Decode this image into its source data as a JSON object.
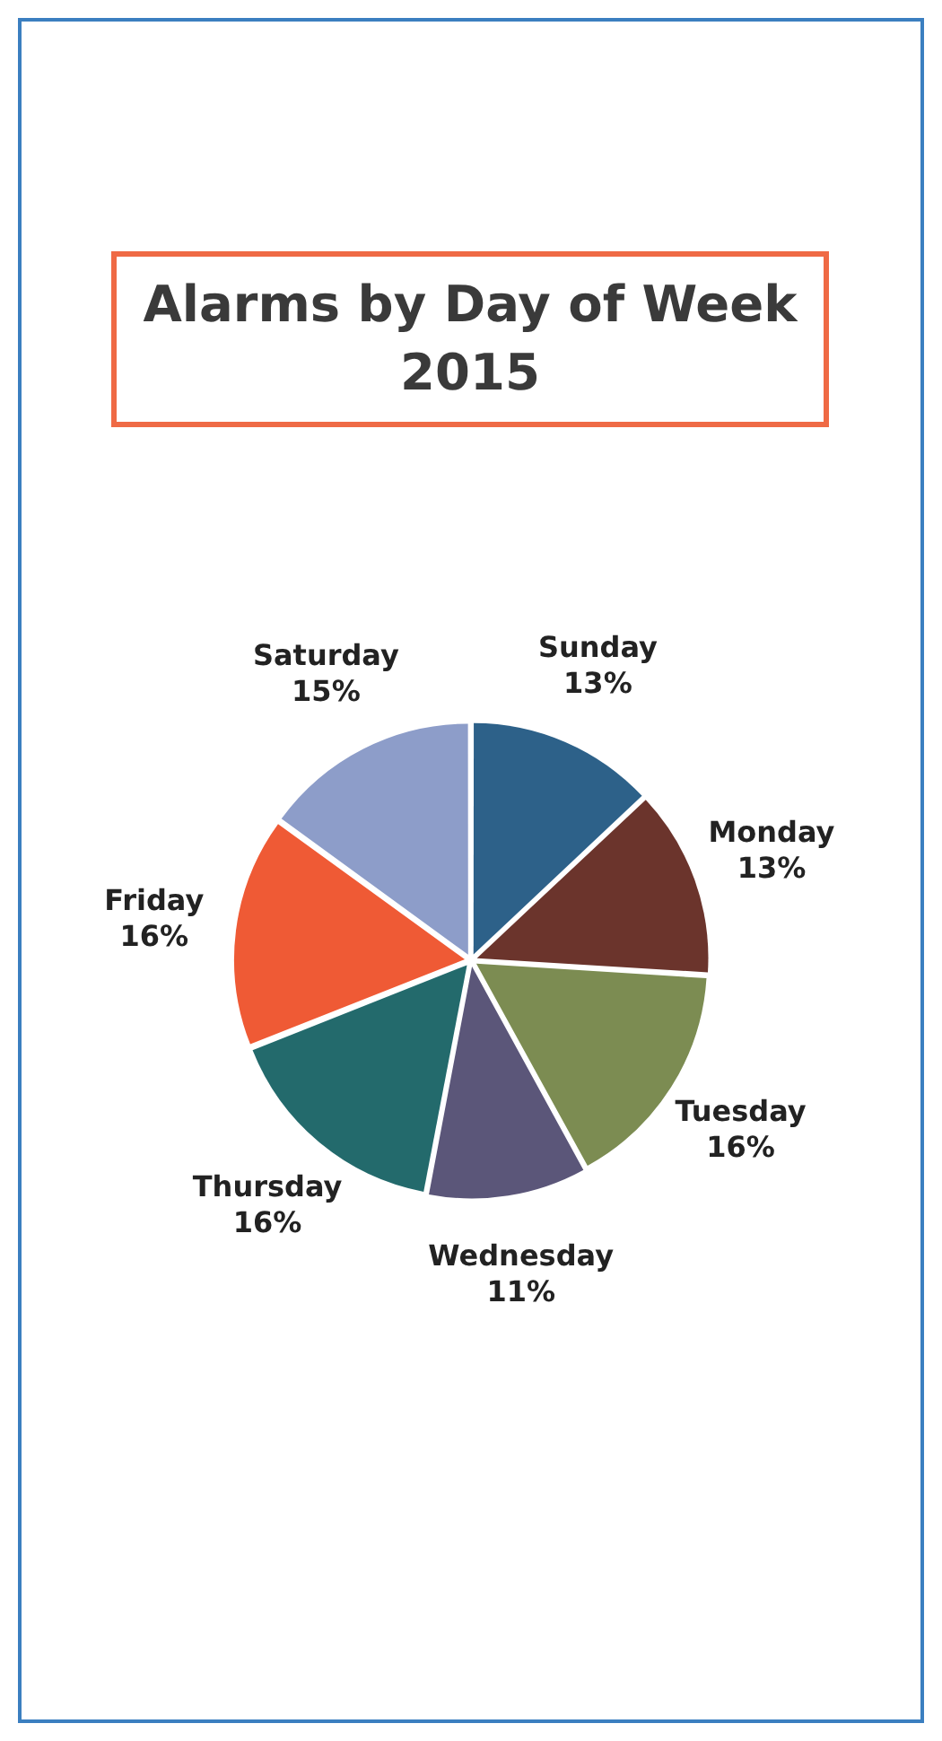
{
  "chart_data": {
    "type": "pie",
    "title": "Alarms by Day of Week\n2015",
    "categories": [
      "Sunday",
      "Monday",
      "Tuesday",
      "Wednesday",
      "Thursday",
      "Friday",
      "Saturday"
    ],
    "values": [
      13,
      13,
      16,
      11,
      16,
      16,
      15
    ],
    "value_labels": [
      "13%",
      "13%",
      "16%",
      "11%",
      "16%",
      "16%",
      "15%"
    ],
    "colors": [
      "#2d6189",
      "#6b342c",
      "#7c8c52",
      "#5b5679",
      "#236a6c",
      "#ef5a35",
      "#8d9dc9"
    ],
    "legend": false
  }
}
